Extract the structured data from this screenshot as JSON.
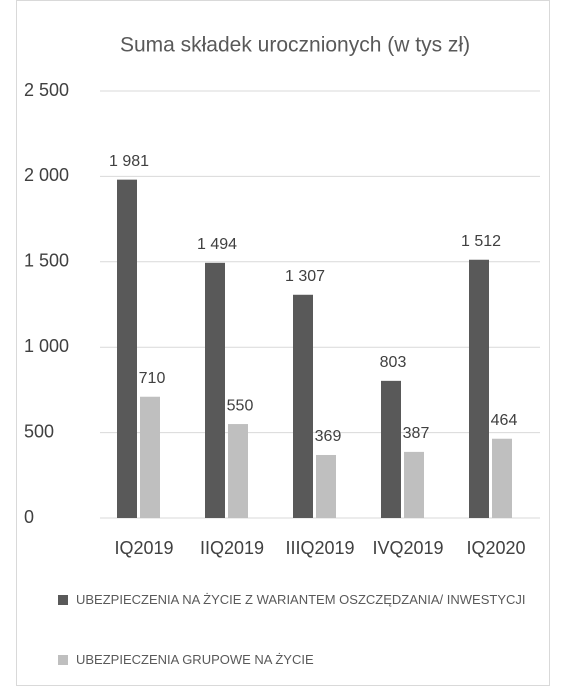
{
  "chart_data": {
    "type": "bar",
    "title": "Suma składek urocznionych (w tys zł)",
    "categories": [
      "IQ2019",
      "IIQ2019",
      "IIIQ2019",
      "IVQ2019",
      "IQ2020"
    ],
    "series": [
      {
        "name": "UBEZPIECZENIA NA ŻYCIE Z WARIANTEM OSZCZĘDZANIA/ INWESTYCJI",
        "color": "#595959",
        "values": [
          1981,
          1494,
          1307,
          803,
          1512
        ],
        "value_labels": [
          "1 981",
          "1 494",
          "1 307",
          "803",
          "1 512"
        ]
      },
      {
        "name": "UBEZPIECZENIA GRUPOWE NA ŻYCIE",
        "color": "#bfbfbf",
        "values": [
          710,
          550,
          369,
          387,
          464
        ]
      }
    ],
    "ylim": [
      0,
      2500
    ],
    "yticks": [
      0,
      500,
      {
        "value": 1000,
        "label": "1 000"
      },
      {
        "value": 1500,
        "label": "1 500"
      },
      {
        "value": 2000,
        "label": "2 000"
      },
      {
        "value": 2500,
        "label": "2 500"
      }
    ],
    "grid": true,
    "legend": "bottom"
  }
}
